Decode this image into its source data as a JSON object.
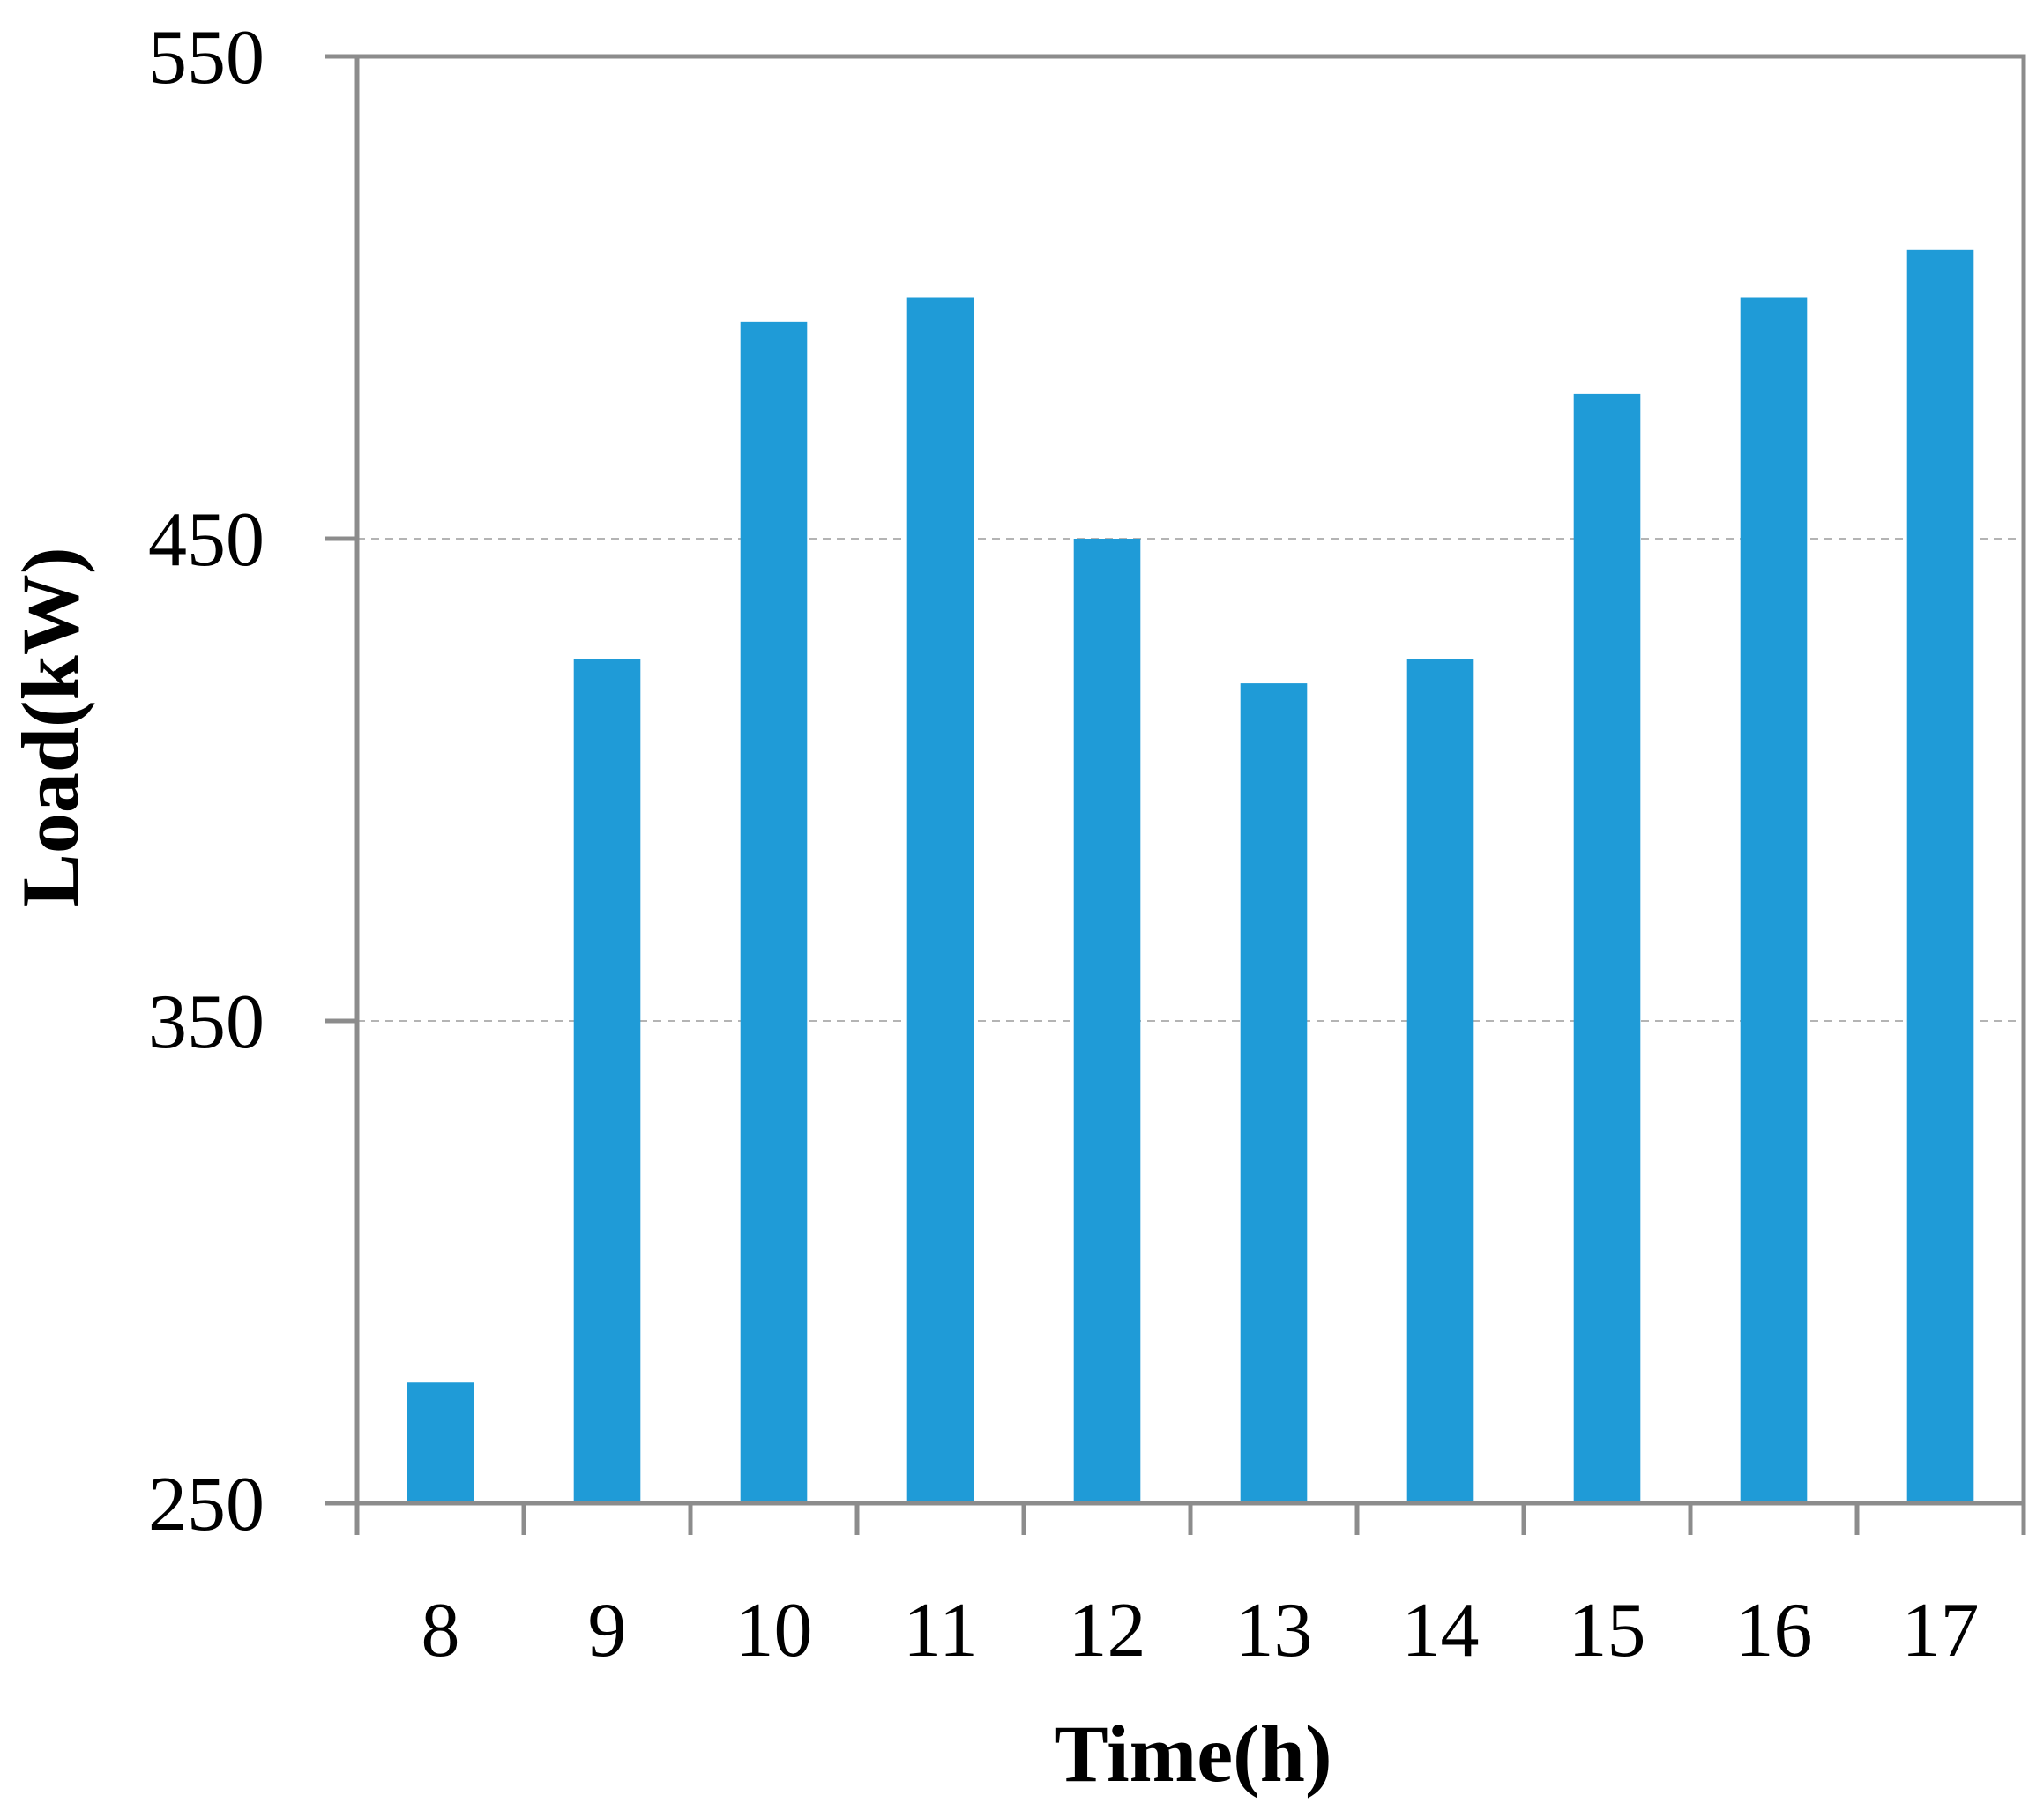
{
  "chart_data": {
    "type": "bar",
    "categories": [
      "8",
      "9",
      "10",
      "11",
      "12",
      "13",
      "14",
      "15",
      "16",
      "17"
    ],
    "values": [
      275,
      425,
      495,
      500,
      450,
      420,
      425,
      480,
      500,
      510
    ],
    "xlabel": "Time(h)",
    "ylabel": "Load(kW)",
    "ylim": [
      250,
      550
    ],
    "yticks": [
      250,
      350,
      450,
      550
    ],
    "grid": "horizontal dashed",
    "legend": "none",
    "colors": {
      "bar": "#1f9bd7",
      "axis": "#8c8c8c",
      "grid": "#b4b4b4",
      "text": "#000000"
    }
  }
}
